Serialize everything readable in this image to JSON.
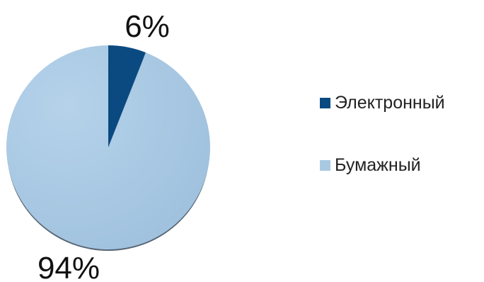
{
  "chart_data": {
    "type": "pie",
    "title": "",
    "slices": [
      {
        "name": "Электронный",
        "value": 6,
        "label": "6%",
        "color": "#0b4a80"
      },
      {
        "name": "Бумажный",
        "value": 94,
        "label": "94%",
        "color": "#a9c9e3"
      }
    ],
    "start": "12 o'clock",
    "direction": "clockwise",
    "legend": "right"
  }
}
